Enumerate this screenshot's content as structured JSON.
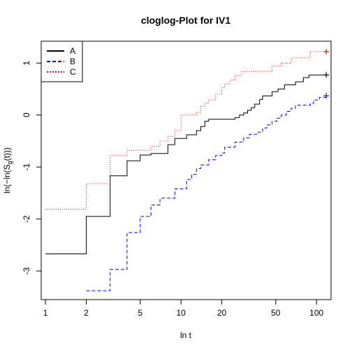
{
  "chart_data": {
    "type": "line",
    "title": "cloglog-Plot for IV1",
    "xlabel": "ln t",
    "ylabel_parts": {
      "pre": "ln(−ln(S",
      "sub": "g",
      "post": "(t)))"
    },
    "x_scale": "log",
    "xlim": [
      0.93,
      128
    ],
    "ylim": [
      -3.55,
      1.42
    ],
    "x_ticks": [
      1,
      2,
      5,
      10,
      20,
      50,
      100
    ],
    "x_tick_labels": [
      "1",
      "2",
      "5",
      "10",
      "20",
      "50",
      "100"
    ],
    "y_ticks": [
      -3,
      -2,
      -1,
      0,
      1
    ],
    "y_tick_labels": [
      "-3",
      "-2",
      "-1",
      "0",
      "1"
    ],
    "legend_position": "top-left",
    "step": true,
    "series": [
      {
        "name": "A",
        "color": "#000000",
        "dash": "solid",
        "end_marker": "+",
        "points": [
          [
            1,
            -2.67
          ],
          [
            2,
            -1.95
          ],
          [
            3,
            -1.17
          ],
          [
            4,
            -0.88
          ],
          [
            5,
            -0.77
          ],
          [
            6,
            -0.74
          ],
          [
            8,
            -0.57
          ],
          [
            9,
            -0.45
          ],
          [
            11,
            -0.38
          ],
          [
            13,
            -0.3
          ],
          [
            14,
            -0.22
          ],
          [
            15,
            -0.12
          ],
          [
            16,
            -0.08
          ],
          [
            25,
            -0.05
          ],
          [
            27,
            0.0
          ],
          [
            29,
            0.04
          ],
          [
            31,
            0.09
          ],
          [
            33,
            0.14
          ],
          [
            35,
            0.21
          ],
          [
            38,
            0.3
          ],
          [
            40,
            0.37
          ],
          [
            47,
            0.45
          ],
          [
            52,
            0.5
          ],
          [
            58,
            0.58
          ],
          [
            70,
            0.64
          ],
          [
            80,
            0.72
          ],
          [
            88,
            0.77
          ],
          [
            118,
            0.77
          ]
        ]
      },
      {
        "name": "B",
        "color": "#0000ff",
        "dash": "dashed",
        "end_marker": "+",
        "points": [
          [
            2,
            -3.38
          ],
          [
            3,
            -2.97
          ],
          [
            4,
            -2.26
          ],
          [
            5,
            -1.95
          ],
          [
            6,
            -1.73
          ],
          [
            7,
            -1.6
          ],
          [
            9,
            -1.42
          ],
          [
            11,
            -1.24
          ],
          [
            12,
            -1.14
          ],
          [
            13,
            -1.03
          ],
          [
            14,
            -0.96
          ],
          [
            16,
            -0.86
          ],
          [
            18,
            -0.78
          ],
          [
            20,
            -0.73
          ],
          [
            21,
            -0.62
          ],
          [
            25,
            -0.52
          ],
          [
            29,
            -0.44
          ],
          [
            32,
            -0.37
          ],
          [
            37,
            -0.33
          ],
          [
            40,
            -0.25
          ],
          [
            43,
            -0.19
          ],
          [
            47,
            -0.12
          ],
          [
            51,
            -0.06
          ],
          [
            55,
            0.0
          ],
          [
            60,
            0.07
          ],
          [
            65,
            0.13
          ],
          [
            70,
            0.19
          ],
          [
            90,
            0.22
          ],
          [
            95,
            0.29
          ],
          [
            105,
            0.34
          ],
          [
            118,
            0.37
          ]
        ]
      },
      {
        "name": "C",
        "color": "#ff0000",
        "dash": "dotted",
        "end_marker": "+",
        "points": [
          [
            1,
            -1.81
          ],
          [
            2,
            -1.32
          ],
          [
            3,
            -0.78
          ],
          [
            4,
            -0.68
          ],
          [
            6,
            -0.6
          ],
          [
            7,
            -0.5
          ],
          [
            8,
            -0.41
          ],
          [
            9,
            -0.3
          ],
          [
            10,
            0.0
          ],
          [
            13,
            0.05
          ],
          [
            14,
            0.17
          ],
          [
            15,
            0.23
          ],
          [
            16,
            0.29
          ],
          [
            18,
            0.4
          ],
          [
            20,
            0.53
          ],
          [
            21,
            0.6
          ],
          [
            23,
            0.67
          ],
          [
            25,
            0.76
          ],
          [
            28,
            0.84
          ],
          [
            47,
            0.94
          ],
          [
            55,
            1.0
          ],
          [
            65,
            1.1
          ],
          [
            90,
            1.22
          ],
          [
            118,
            1.22
          ]
        ]
      }
    ]
  }
}
